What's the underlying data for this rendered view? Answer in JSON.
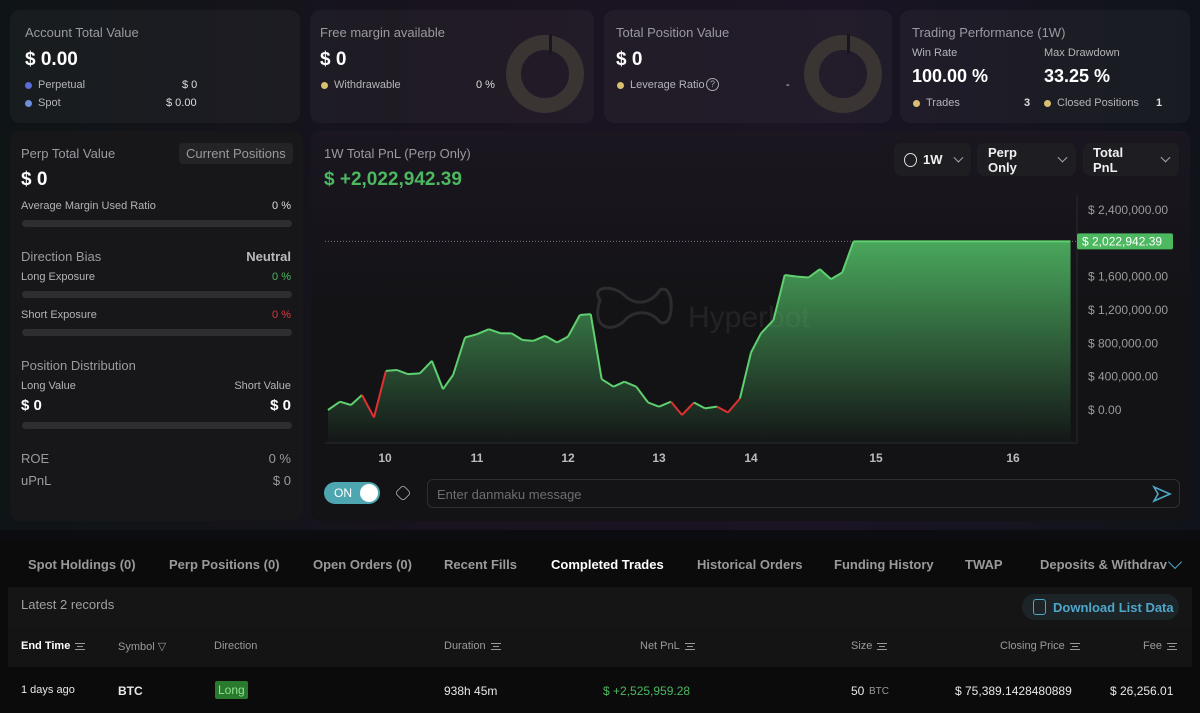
{
  "account": {
    "title": "Account Total Value",
    "value": "$ 0.00",
    "items": [
      {
        "label": "Perpetual",
        "value": "$ 0",
        "color": "#5b6bd8"
      },
      {
        "label": "Spot",
        "value": "$ 0.00",
        "color": "#6b8fd8"
      }
    ]
  },
  "margin": {
    "title": "Free margin available",
    "value": "$ 0",
    "label": "Withdrawable",
    "pct": "0 %"
  },
  "position": {
    "title": "Total Position Value",
    "value": "$ 0",
    "label": "Leverage Ratio",
    "ratio": "-"
  },
  "performance": {
    "title": "Trading Performance (1W)",
    "win_rate_label": "Win Rate",
    "win_rate": "100.00 %",
    "drawdown_label": "Max Drawdown",
    "drawdown": "33.25 %",
    "trades_label": "Trades",
    "trades": "3",
    "closed_label": "Closed Positions",
    "closed": "1"
  },
  "perp": {
    "title": "Perp Total Value",
    "button": "Current Positions",
    "value": "$ 0",
    "margin_label": "Average Margin Used Ratio",
    "margin_value": "0 %",
    "bias_label": "Direction Bias",
    "bias_value": "Neutral",
    "long_exp_label": "Long Exposure",
    "long_exp": "0 %",
    "short_exp_label": "Short Exposure",
    "short_exp": "0 %",
    "dist_label": "Position Distribution",
    "long_value_label": "Long Value",
    "short_value_label": "Short Value",
    "long_value": "$ 0",
    "short_value": "$ 0",
    "roe_label": "ROE",
    "roe": "0 %",
    "upnl_label": "uPnL",
    "upnl": "$ 0"
  },
  "pnl": {
    "title": "1W Total PnL (Perp Only)",
    "value": "$ +2,022,942.39",
    "period": "1W",
    "scope": "Perp Only",
    "metric": "Total PnL",
    "watermark": "Hyperbot",
    "toggle": "ON",
    "danmaku_placeholder": "Enter danmaku message"
  },
  "chart_data": {
    "type": "area",
    "title": "1W Total PnL (Perp Only)",
    "current_label": "$ 2,022,942.39",
    "current": 2022942.39,
    "ylim": [
      0,
      2400000
    ],
    "yticks": [
      {
        "v": 0,
        "l": "$ 0.00"
      },
      {
        "v": 400000,
        "l": "$ 400,000.00"
      },
      {
        "v": 800000,
        "l": "$ 800,000.00"
      },
      {
        "v": 1200000,
        "l": "$ 1,200,000.00"
      },
      {
        "v": 1600000,
        "l": "$ 1,600,000.00"
      },
      {
        "v": 2400000,
        "l": "$ 2,400,000.00"
      }
    ],
    "xticks": [
      "10",
      "11",
      "12",
      "13",
      "14",
      "15",
      "16"
    ],
    "x": [
      9.38,
      9.51,
      9.63,
      9.75,
      9.88,
      10.01,
      10.13,
      10.25,
      10.38,
      10.51,
      10.63,
      10.74,
      10.87,
      11.0,
      11.13,
      11.26,
      11.38,
      11.5,
      11.62,
      11.75,
      11.88,
      12.0,
      12.13,
      12.25,
      12.37,
      12.5,
      12.62,
      12.75,
      12.88,
      13.0,
      13.13,
      13.25,
      13.38,
      13.5,
      13.63,
      13.75,
      13.88,
      14.0,
      14.08,
      14.18,
      14.27,
      14.37,
      14.46,
      14.55,
      14.64,
      14.73,
      14.82,
      16.42
    ],
    "y": [
      0,
      100000,
      60000,
      180000,
      -90000,
      470000,
      480000,
      430000,
      440000,
      590000,
      250000,
      420000,
      870000,
      910000,
      970000,
      920000,
      920000,
      840000,
      830000,
      890000,
      810000,
      880000,
      1140000,
      1150000,
      370000,
      280000,
      340000,
      280000,
      90000,
      40000,
      100000,
      -60000,
      90000,
      20000,
      40000,
      -30000,
      140000,
      690000,
      920000,
      1080000,
      1620000,
      1600000,
      1590000,
      1690000,
      1570000,
      1650000,
      2022942,
      2022942
    ]
  },
  "tabs": [
    "Spot Holdings (0)",
    "Perp Positions (0)",
    "Open Orders (0)",
    "Recent Fills",
    "Completed Trades",
    "Historical Orders",
    "Funding History",
    "TWAP",
    "Deposits & Withdrav"
  ],
  "records": "Latest 2 records",
  "download": "Download List Data",
  "columns": [
    "End Time",
    "Symbol",
    "Direction",
    "Duration",
    "Net PnL",
    "Size",
    "Closing Price",
    "Fee"
  ],
  "rows": [
    {
      "end": "1 days ago",
      "symbol": "BTC",
      "direction": "Long",
      "duration": "938h 45m",
      "pnl": "$ +2,525,959.28",
      "size": "50",
      "unit": "BTC",
      "price": "$ 75,389.1428480889",
      "fee": "$ 26,256.01"
    }
  ]
}
